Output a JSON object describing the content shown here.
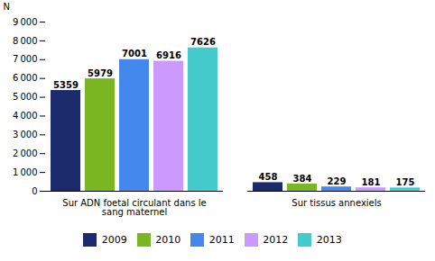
{
  "chart_data": {
    "type": "bar",
    "categories": [
      "Sur ADN foetal circulant dans le\nsang maternel",
      "Sur tissus annexiels"
    ],
    "series": [
      {
        "name": "2009",
        "color": "#1B2A6B",
        "values": [
          5359,
          458
        ]
      },
      {
        "name": "2010",
        "color": "#7AB621",
        "values": [
          5979,
          384
        ]
      },
      {
        "name": "2011",
        "color": "#4488EE",
        "values": [
          7001,
          229
        ]
      },
      {
        "name": "2012",
        "color": "#CC99FF",
        "values": [
          6916,
          181
        ]
      },
      {
        "name": "2013",
        "color": "#44CCCC",
        "values": [
          7626,
          175
        ]
      }
    ],
    "ylabel": "N",
    "ylim": [
      0,
      9000
    ],
    "yticks": [
      0,
      {
        "value": 1000,
        "label": "1 000"
      },
      {
        "value": 2000,
        "label": "2 000"
      },
      {
        "value": 3000,
        "label": "3 000"
      },
      {
        "value": 4000,
        "label": "4 000"
      },
      {
        "value": 5000,
        "label": "5 000"
      },
      {
        "value": 6000,
        "label": "6 000"
      },
      {
        "value": 7000,
        "label": "7 000"
      },
      {
        "value": 8000,
        "label": "8 000"
      },
      {
        "value": 9000,
        "label": "9 000"
      }
    ],
    "data_labels": true,
    "legend": "bottom"
  }
}
